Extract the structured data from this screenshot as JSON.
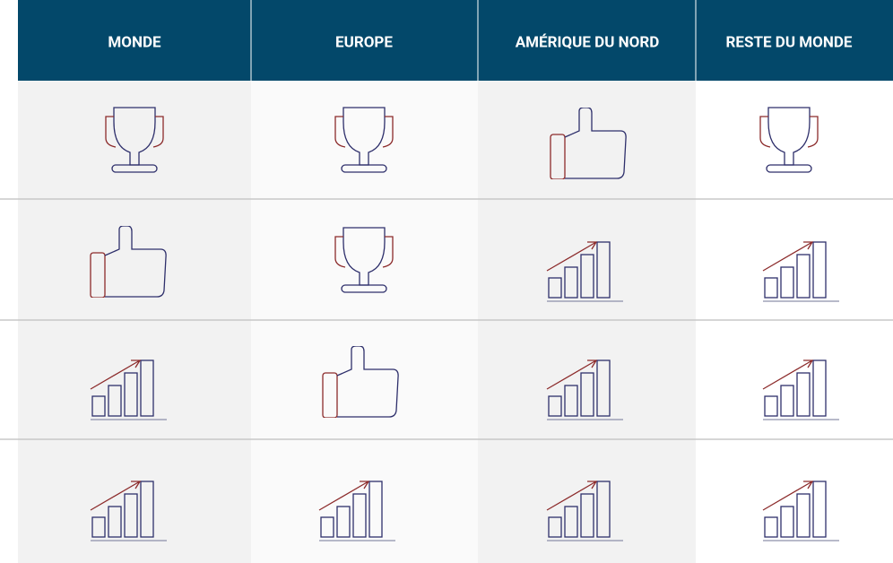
{
  "header": {
    "columns": [
      "MONDE",
      "EUROPE",
      "AMÉRIQUE DU NORD",
      "RESTE DU MONDE"
    ]
  }
}
